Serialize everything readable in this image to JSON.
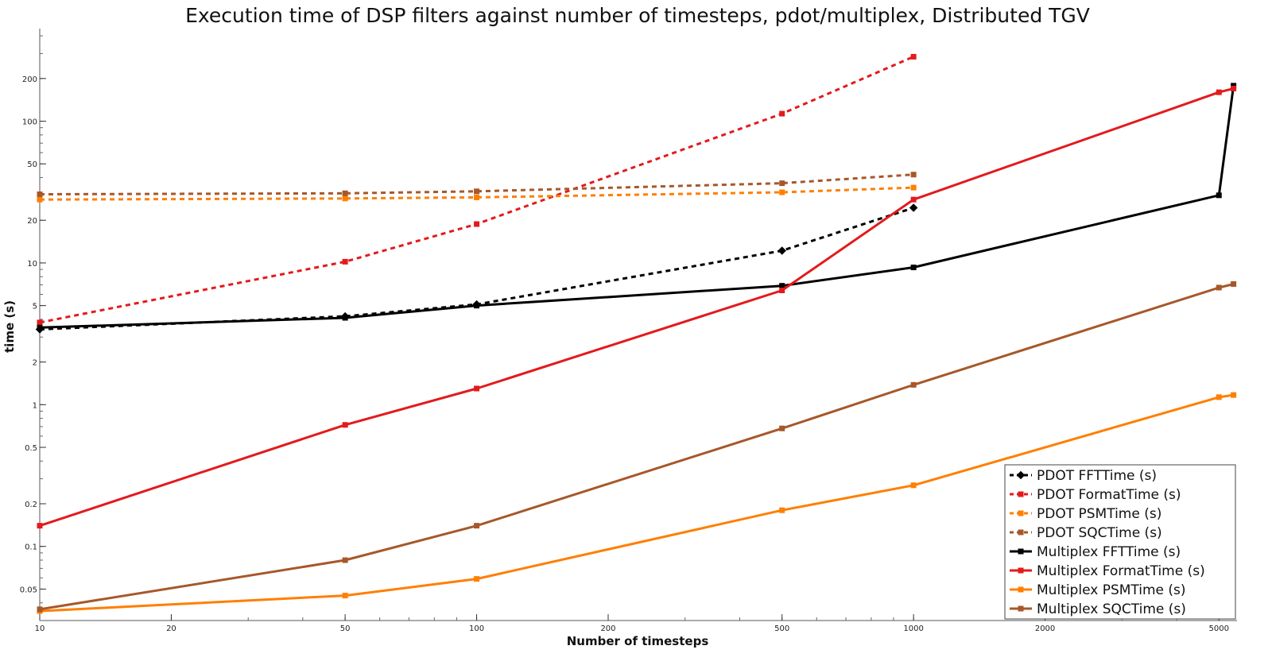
{
  "chart_data": {
    "type": "line",
    "title": "Execution time of DSP filters against number of timesteps, pdot/multiplex, Distributed TGV",
    "xlabel": "Number of timesteps",
    "ylabel": "time (s)",
    "xscale": "log",
    "yscale": "log",
    "xlim": [
      10,
      5500
    ],
    "ylim": [
      0.03,
      450
    ],
    "x_ticks": [
      10,
      20,
      50,
      100,
      200,
      500,
      1000,
      2000,
      5000
    ],
    "x_tick_labels": [
      "10",
      "20",
      "50",
      "100",
      "200",
      "500",
      "1000",
      "2000",
      "5000"
    ],
    "y_ticks": [
      0.05,
      0.1,
      0.2,
      0.5,
      1,
      2,
      5,
      10,
      20,
      50,
      100,
      200
    ],
    "y_tick_labels": [
      "0.05",
      "0.1",
      "0.2",
      "0.5",
      "1",
      "2",
      "5",
      "10",
      "20",
      "50",
      "100",
      "200"
    ],
    "grid": false,
    "legend_position": "bottom-right",
    "series": [
      {
        "name": "PDOT FFTTime (s)",
        "color": "#000000",
        "style": "dashed",
        "marker": "diamond",
        "x": [
          10,
          50,
          100,
          500,
          1000
        ],
        "y": [
          3.4,
          4.2,
          5.1,
          12.2,
          24.5
        ]
      },
      {
        "name": "PDOT FormatTime (s)",
        "color": "#e31a1c",
        "style": "dashed",
        "marker": "square",
        "x": [
          10,
          50,
          100,
          500,
          1000
        ],
        "y": [
          3.8,
          10.2,
          18.8,
          113,
          285
        ]
      },
      {
        "name": "PDOT PSMTime (s)",
        "color": "#ff7f00",
        "style": "dashed",
        "marker": "square",
        "x": [
          10,
          50,
          100,
          500,
          1000
        ],
        "y": [
          28,
          28.5,
          29,
          31.5,
          34
        ]
      },
      {
        "name": "PDOT SQCTime (s)",
        "color": "#a6582a",
        "style": "dashed",
        "marker": "square",
        "x": [
          10,
          50,
          100,
          500,
          1000
        ],
        "y": [
          30.5,
          31,
          32,
          36.5,
          42
        ]
      },
      {
        "name": "Multiplex FFTTime (s)",
        "color": "#000000",
        "style": "solid",
        "marker": "square",
        "x": [
          10,
          50,
          100,
          500,
          1000,
          5000,
          5400
        ],
        "y": [
          3.5,
          4.1,
          5.0,
          6.9,
          9.3,
          30,
          178
        ]
      },
      {
        "name": "Multiplex FormatTime (s)",
        "color": "#e31a1c",
        "style": "solid",
        "marker": "square",
        "x": [
          10,
          50,
          100,
          500,
          1000,
          5000,
          5400
        ],
        "y": [
          0.14,
          0.72,
          1.3,
          6.4,
          28,
          160,
          170
        ]
      },
      {
        "name": "Multiplex PSMTime (s)",
        "color": "#ff7f00",
        "style": "solid",
        "marker": "square",
        "x": [
          10,
          50,
          100,
          500,
          1000,
          5000,
          5400
        ],
        "y": [
          0.035,
          0.045,
          0.059,
          0.18,
          0.27,
          1.13,
          1.17
        ]
      },
      {
        "name": "Multiplex SQCTime (s)",
        "color": "#a6582a",
        "style": "solid",
        "marker": "square",
        "x": [
          10,
          50,
          100,
          500,
          1000,
          5000,
          5400
        ],
        "y": [
          0.036,
          0.08,
          0.14,
          0.68,
          1.38,
          6.7,
          7.1
        ]
      }
    ]
  }
}
